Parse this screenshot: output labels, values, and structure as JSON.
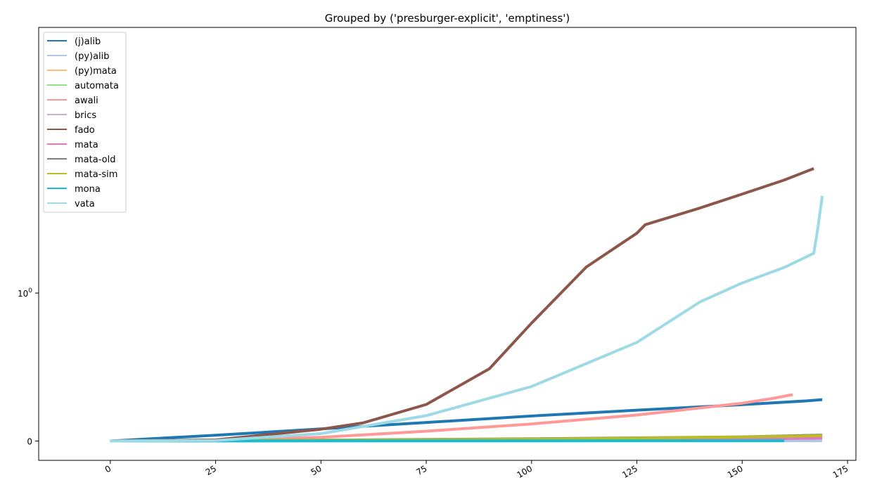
{
  "chart_data": {
    "type": "line",
    "title": "Grouped by ('presburger-explicit', 'emptiness')",
    "xlabel": "",
    "ylabel": "",
    "xlim": [
      -17,
      177
    ],
    "y_scale": "symlog",
    "x_ticks": [
      0,
      25,
      50,
      75,
      100,
      125,
      150,
      175
    ],
    "x_tick_labels": [
      "0",
      "25",
      "50",
      "75",
      "100",
      "125",
      "150",
      "175"
    ],
    "y_ticks": [
      0,
      1
    ],
    "y_tick_labels": [
      "0",
      "10^0"
    ],
    "legend_position": "upper left",
    "series": [
      {
        "name": "(j)alib",
        "color": "#1f77b4",
        "points": [
          [
            0,
            0
          ],
          [
            25,
            0.0395
          ],
          [
            50,
            0.0818
          ],
          [
            75,
            0.1254
          ],
          [
            100,
            0.1691
          ],
          [
            125,
            0.2084
          ],
          [
            150,
            0.2457
          ],
          [
            165,
            0.2707
          ],
          [
            169,
            0.28
          ]
        ]
      },
      {
        "name": "(py)alib",
        "color": "#aec7e8",
        "points": [
          [
            0,
            0
          ],
          [
            50,
            0.0005
          ],
          [
            100,
            0.001
          ],
          [
            150,
            0.0015
          ],
          [
            169,
            0.002
          ]
        ]
      },
      {
        "name": "(py)mata",
        "color": "#ffbb78",
        "points": [
          [
            0,
            0
          ],
          [
            50,
            0.002
          ],
          [
            100,
            0.004
          ],
          [
            150,
            0.008
          ],
          [
            160,
            0.01
          ]
        ]
      },
      {
        "name": "automata",
        "color": "#98df8a",
        "points": [
          [
            0,
            0
          ],
          [
            50,
            0.005
          ],
          [
            100,
            0.012
          ],
          [
            150,
            0.025
          ],
          [
            169,
            0.032
          ]
        ]
      },
      {
        "name": "awali",
        "color": "#ff9896",
        "points": [
          [
            0,
            0
          ],
          [
            25,
            0.0077
          ],
          [
            50,
            0.0254
          ],
          [
            75,
            0.0663
          ],
          [
            100,
            0.1156
          ],
          [
            125,
            0.1756
          ],
          [
            150,
            0.2557
          ],
          [
            157,
            0.2871
          ],
          [
            162,
            0.3135
          ]
        ]
      },
      {
        "name": "brics",
        "color": "#c5b0d5",
        "points": [
          [
            0,
            0
          ],
          [
            50,
            0.004
          ],
          [
            100,
            0.01
          ],
          [
            150,
            0.02
          ],
          [
            169,
            0.026
          ]
        ]
      },
      {
        "name": "fado",
        "color": "#8c564b",
        "points": [
          [
            0,
            0
          ],
          [
            25,
            0.0077
          ],
          [
            50,
            0.0798
          ],
          [
            60,
            0.1224
          ],
          [
            75,
            0.247
          ],
          [
            90,
            0.4888
          ],
          [
            100,
            0.7973
          ],
          [
            113,
            1.5
          ],
          [
            125,
            2.54
          ],
          [
            127,
            2.9
          ],
          [
            140,
            3.76
          ],
          [
            150,
            4.67
          ],
          [
            160,
            5.81
          ],
          [
            167,
            6.95
          ]
        ]
      },
      {
        "name": "mata",
        "color": "#e377c2",
        "points": [
          [
            0,
            0
          ],
          [
            50,
            0.003
          ],
          [
            100,
            0.007
          ],
          [
            150,
            0.014
          ],
          [
            169,
            0.02
          ]
        ]
      },
      {
        "name": "mata-old",
        "color": "#7f7f7f",
        "points": [
          [
            0,
            0
          ],
          [
            50,
            0.006
          ],
          [
            100,
            0.015
          ],
          [
            150,
            0.028
          ],
          [
            169,
            0.04
          ]
        ]
      },
      {
        "name": "mata-sim",
        "color": "#bcbd22",
        "points": [
          [
            0,
            0
          ],
          [
            50,
            0.005
          ],
          [
            100,
            0.013
          ],
          [
            150,
            0.027
          ],
          [
            169,
            0.036
          ]
        ]
      },
      {
        "name": "mona",
        "color": "#17becf",
        "points": [
          [
            0,
            0
          ],
          [
            50,
            0.001
          ],
          [
            100,
            0.0015
          ],
          [
            160,
            0.002
          ]
        ]
      },
      {
        "name": "vata",
        "color": "#9edae5",
        "points": [
          [
            0,
            0
          ],
          [
            25,
            0.0035
          ],
          [
            50,
            0.0501
          ],
          [
            75,
            0.1717
          ],
          [
            100,
            0.3687
          ],
          [
            125,
            0.6663
          ],
          [
            140,
            0.9408
          ],
          [
            150,
            1.17
          ],
          [
            160,
            1.49
          ],
          [
            167,
            1.86
          ],
          [
            168,
            2.8
          ],
          [
            169,
            4.54
          ]
        ]
      }
    ]
  }
}
